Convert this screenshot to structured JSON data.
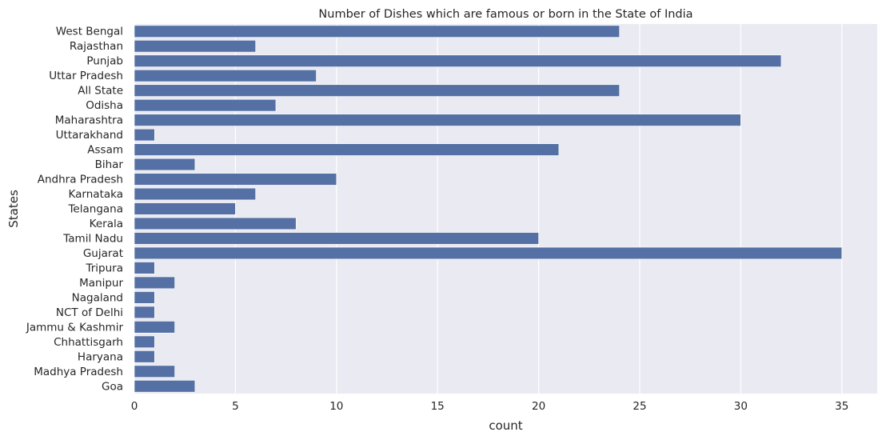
{
  "chart_data": {
    "type": "bar",
    "orientation": "horizontal",
    "title": "Number of Dishes which are famous or born in the State of India",
    "xlabel": "count",
    "ylabel": "States",
    "xlim": [
      0,
      36.75
    ],
    "x_ticks": [
      0,
      5,
      10,
      15,
      20,
      25,
      30,
      35
    ],
    "grid": true,
    "categories": [
      "West Bengal",
      "Rajasthan",
      "Punjab",
      "Uttar Pradesh",
      "All State",
      "Odisha",
      "Maharashtra",
      "Uttarakhand",
      "Assam",
      "Bihar",
      "Andhra Pradesh",
      "Karnataka",
      "Telangana",
      "Kerala",
      "Tamil Nadu",
      "Gujarat",
      "Tripura",
      "Manipur",
      "Nagaland",
      "NCT of Delhi",
      "Jammu & Kashmir",
      "Chhattisgarh",
      "Haryana",
      "Madhya Pradesh",
      "Goa"
    ],
    "values": [
      24,
      6,
      32,
      9,
      24,
      7,
      30,
      1,
      21,
      3,
      10,
      6,
      5,
      8,
      20,
      35,
      1,
      2,
      1,
      1,
      2,
      1,
      1,
      2,
      3
    ],
    "colors": {
      "bar": "#5470a4",
      "plot_background": "#eaeaf2",
      "grid": "#ffffff"
    }
  }
}
